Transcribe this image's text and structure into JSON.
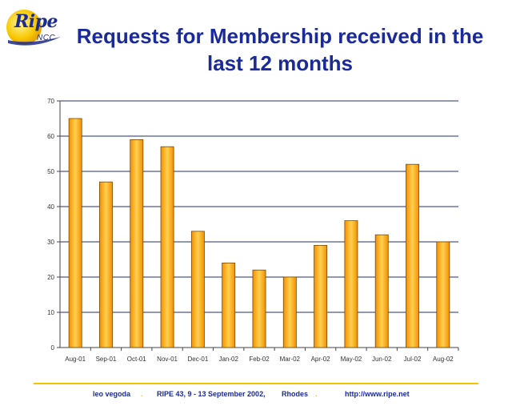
{
  "logo": {
    "text": "Ripe",
    "subtext": "NCC"
  },
  "title": "Requests for Membership received in the last 12 months",
  "colors": {
    "title": "#1a2a9a",
    "bar_light": "#ffd050",
    "bar_dark": "#f39000",
    "grid": "#1f2f7f",
    "footer_rule": "#f6c300"
  },
  "chart_data": {
    "type": "bar",
    "categories": [
      "Aug-01",
      "Sep-01",
      "Oct-01",
      "Nov-01",
      "Dec-01",
      "Jan-02",
      "Feb-02",
      "Mar-02",
      "Apr-02",
      "May-02",
      "Jun-02",
      "Jul-02",
      "Aug-02"
    ],
    "values": [
      65,
      47,
      59,
      57,
      33,
      24,
      22,
      20,
      29,
      36,
      32,
      52,
      30
    ],
    "ylim": [
      0,
      70
    ],
    "yticks": [
      0,
      10,
      20,
      30,
      40,
      50,
      60,
      70
    ],
    "grid": true,
    "legend": false
  },
  "footer": {
    "author": "leo vegoda",
    "sep1": ".",
    "event": "RIPE 43, 9 - 13 September 2002,",
    "place": "Rhodes",
    "sep2": ".",
    "url": "http://www.ripe.net"
  }
}
